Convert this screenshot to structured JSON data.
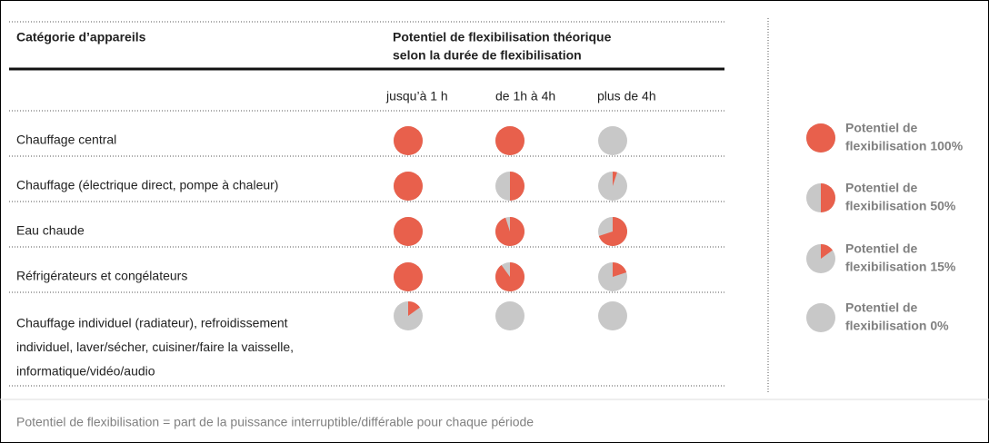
{
  "table": {
    "header": {
      "category": "Catégorie d’appareils",
      "potential": [
        "Potentiel de flexibilisation théorique",
        "selon la durée de flexibilisation"
      ]
    },
    "columns": [
      "jusqu’à 1 h",
      "de 1h à 4h",
      "plus de 4h"
    ],
    "rows": [
      {
        "label": [
          "Chauffage central"
        ],
        "values": [
          100,
          100,
          0
        ]
      },
      {
        "label": [
          "Chauffage (électrique direct, pompe à chaleur)"
        ],
        "values": [
          100,
          50,
          5
        ]
      },
      {
        "label": [
          "Eau chaude"
        ],
        "values": [
          100,
          95,
          70
        ]
      },
      {
        "label": [
          "Réfrigérateurs et congélateurs"
        ],
        "values": [
          100,
          90,
          20
        ]
      },
      {
        "label": [
          "Chauffage individuel (radiateur), refroidissement",
          "individuel, laver/sécher, cuisiner/faire la vaisselle,",
          "informatique/vidéo/audio"
        ],
        "values": [
          15,
          0,
          0
        ]
      }
    ]
  },
  "legend": [
    {
      "label": [
        "Potentiel de",
        "flexibilisation 100%"
      ],
      "value": 100
    },
    {
      "label": [
        "Potentiel de",
        "flexibilisation 50%"
      ],
      "value": 50
    },
    {
      "label": [
        "Potentiel de",
        "flexibilisation 15%"
      ],
      "value": 15
    },
    {
      "label": [
        "Potentiel de",
        "flexibilisation 0%"
      ],
      "value": 0
    }
  ],
  "footnote": "Potentiel de flexibilisation = part de la puissance interruptible/différable pour chaque période"
}
